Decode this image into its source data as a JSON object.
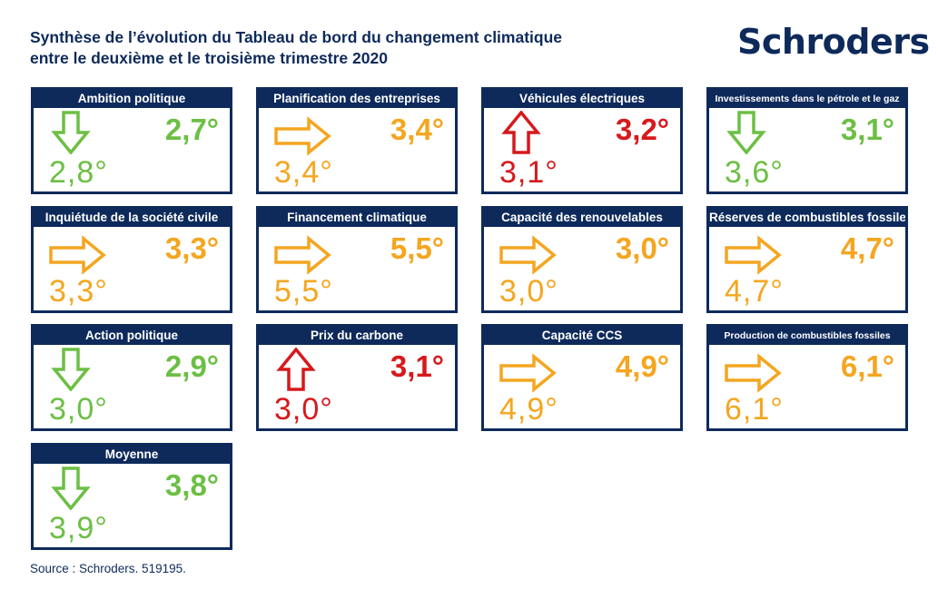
{
  "title": {
    "line1": "Synthèse de l’évolution du Tableau de bord du changement climatique",
    "line2": "entre le deuxième et le troisième trimestre 2020"
  },
  "logo": "Schroders",
  "source": "Source : Schroders. 519195.",
  "colors": {
    "navy": "#0e2a5b",
    "green": "#6cbf44",
    "orange": "#f4a620",
    "red": "#d7191c"
  },
  "chart_data": {
    "type": "table",
    "columns": [
      "indicator",
      "previous",
      "current",
      "trend"
    ],
    "rows": [
      {
        "label": "Ambition politique",
        "previous": "2,8°",
        "current": "2,7°",
        "trend": "down"
      },
      {
        "label": "Planification des entreprises",
        "previous": "3,4°",
        "current": "3,4°",
        "trend": "flat"
      },
      {
        "label": "Véhicules électriques",
        "previous": "3,1°",
        "current": "3,2°",
        "trend": "up"
      },
      {
        "label": "Investissements dans le pétrole et le gaz",
        "previous": "3,6°",
        "current": "3,1°",
        "trend": "down"
      },
      {
        "label": "Inquiétude de la société civile",
        "previous": "3,3°",
        "current": "3,3°",
        "trend": "flat"
      },
      {
        "label": "Financement climatique",
        "previous": "5,5°",
        "current": "5,5°",
        "trend": "flat"
      },
      {
        "label": "Capacité des renouvelables",
        "previous": "3,0°",
        "current": "3,0°",
        "trend": "flat"
      },
      {
        "label": "Réserves de combustibles fossiles",
        "previous": "4,7°",
        "current": "4,7°",
        "trend": "flat"
      },
      {
        "label": "Action politique",
        "previous": "3,0°",
        "current": "2,9°",
        "trend": "down"
      },
      {
        "label": "Prix du carbone",
        "previous": "3,0°",
        "current": "3,1°",
        "trend": "up"
      },
      {
        "label": "Capacité CCS",
        "previous": "4,9°",
        "current": "4,9°",
        "trend": "flat"
      },
      {
        "label": "Production de combustibles fossiles",
        "previous": "6,1°",
        "current": "6,1°",
        "trend": "flat"
      },
      {
        "label": "Moyenne",
        "previous": "3,9°",
        "current": "3,8°",
        "trend": "down"
      }
    ]
  }
}
